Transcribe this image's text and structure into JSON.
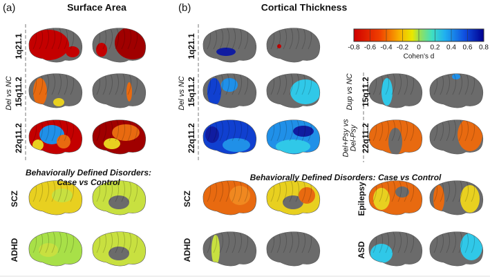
{
  "panels": [
    {
      "label": "(a)",
      "title": "Surface Area",
      "group_label": "Del vs NC",
      "rows": [
        "1q21.1",
        "15q11.2",
        "22q11.2"
      ],
      "behavioral_title": [
        "Behaviorally Defined Disorders:",
        "Case vs Control"
      ],
      "behavioral_rows": [
        "SCZ",
        "ADHD"
      ]
    },
    {
      "label": "(b)",
      "title": "Cortical Thickness",
      "group_label": "Del vs NC",
      "rows": [
        "1q21.1",
        "15q11.2",
        "22q11.2"
      ],
      "side_rows": [
        {
          "group": [
            "Dup vs NC"
          ],
          "label": "15q11.2"
        },
        {
          "group": [
            "Del+Psy vs",
            "Del-Psy"
          ],
          "label": "22q11.2"
        }
      ],
      "behavioral_title": [
        "Behaviorally Defined Disorders: Case vs Control"
      ],
      "behavioral_rows": [
        "SCZ",
        "ADHD",
        "Epilepsy",
        "ASD"
      ]
    }
  ],
  "colorbar": {
    "title": "Cohen's d",
    "lim": [
      -0.8,
      0.8
    ],
    "ticks": [
      -0.8,
      -0.6,
      -0.4,
      -0.2,
      0,
      0.2,
      0.4,
      0.6,
      0.8
    ]
  }
}
